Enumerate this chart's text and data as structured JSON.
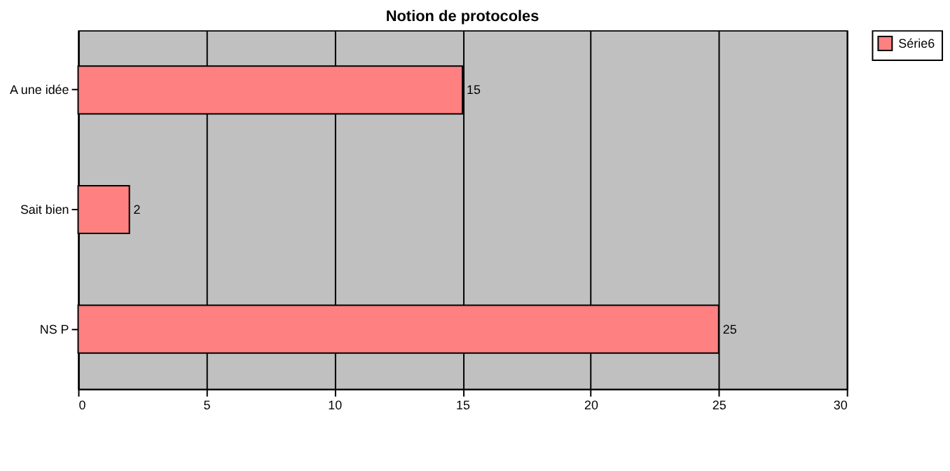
{
  "chart_data": {
    "type": "bar",
    "orientation": "horizontal",
    "title": "Notion de protocoles",
    "categories": [
      "A une idée",
      "Sait bien",
      "NS P"
    ],
    "series": [
      {
        "name": "Série6",
        "color": "#ff8080",
        "values": [
          15,
          2,
          25
        ]
      }
    ],
    "xlim": [
      0,
      30
    ],
    "xticks": [
      0,
      5,
      10,
      15,
      20,
      25,
      30
    ],
    "grid": "x",
    "legend": "right",
    "data_labels": true
  }
}
